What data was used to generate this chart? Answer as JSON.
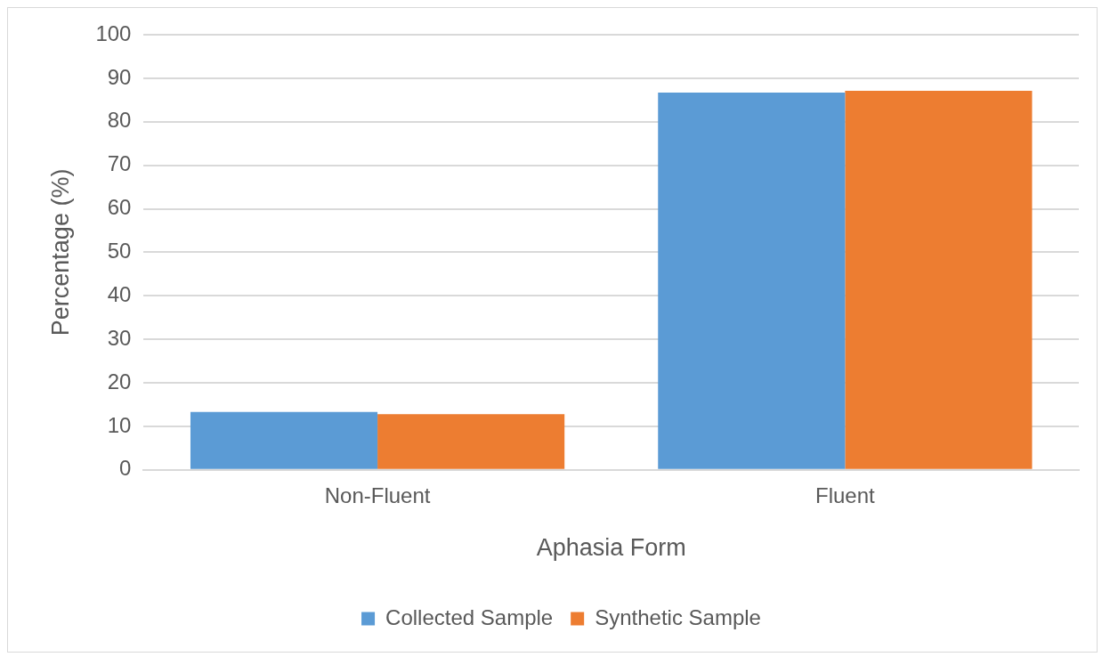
{
  "chart_data": {
    "type": "bar",
    "xlabel": "Aphasia Form",
    "ylabel": "Percentage (%)",
    "categories": [
      "Non-Fluent",
      "Fluent"
    ],
    "series": [
      {
        "name": "Collected Sample",
        "color": "#5b9bd5",
        "values": [
          13.3,
          86.7
        ]
      },
      {
        "name": "Synthetic Sample",
        "color": "#ed7d31",
        "values": [
          12.8,
          87.1
        ]
      }
    ],
    "ylim": [
      0,
      100
    ],
    "yticks": [
      0,
      10,
      20,
      30,
      40,
      50,
      60,
      70,
      80,
      90,
      100
    ],
    "grid": "y",
    "legend": "bottom"
  }
}
